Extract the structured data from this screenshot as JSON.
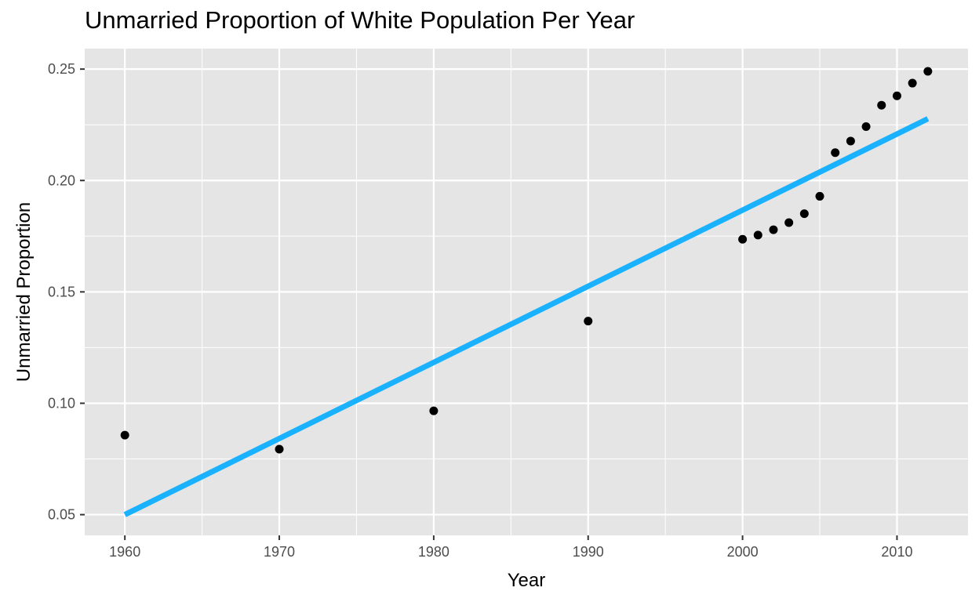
{
  "chart_data": {
    "type": "scatter",
    "title": "Unmarried Proportion of White Population Per Year",
    "xlabel": "Year",
    "ylabel": "Unmarried Proportion",
    "xlim": [
      1957.4,
      2014.6
    ],
    "ylim": [
      0.0407,
      0.2592
    ],
    "x_ticks": [
      1960,
      1970,
      1980,
      1990,
      2000,
      2010
    ],
    "y_ticks": [
      0.05,
      0.1,
      0.15,
      0.2,
      0.25
    ],
    "x_tick_labels": [
      "1960",
      "1970",
      "1980",
      "1990",
      "2000",
      "2010"
    ],
    "y_tick_labels": [
      "0.05",
      "0.10",
      "0.15",
      "0.20",
      "0.25"
    ],
    "grid": true,
    "background_color": "#e5e5e5",
    "grid_color": "#ffffff",
    "point_color": "#000000",
    "line_color": "#1ab2ff",
    "series": [
      {
        "type": "scatter",
        "x": [
          1960,
          1970,
          1980,
          1990,
          2000,
          2001,
          2002,
          2003,
          2004,
          2005,
          2006,
          2007,
          2008,
          2009,
          2010,
          2011,
          2012
        ],
        "y": [
          0.0857,
          0.0794,
          0.0966,
          0.1369,
          0.1736,
          0.1755,
          0.1779,
          0.1811,
          0.1851,
          0.1929,
          0.2125,
          0.2177,
          0.2242,
          0.2338,
          0.238,
          0.2437,
          0.249
        ]
      },
      {
        "type": "line",
        "x": [
          1960,
          2012
        ],
        "y": [
          0.05,
          0.2277
        ]
      }
    ]
  }
}
